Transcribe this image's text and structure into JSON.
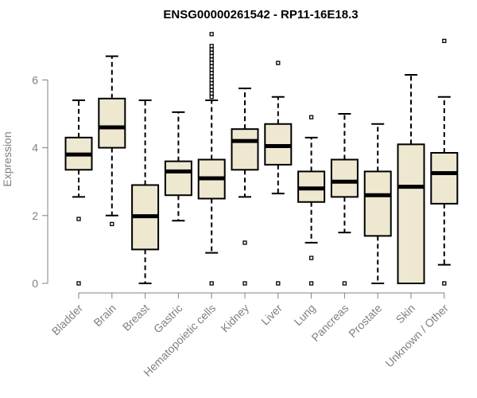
{
  "chart_data": {
    "type": "boxplot",
    "title": "ENSG00000261542 - RP11-16E18.3",
    "xlabel": "",
    "ylabel": "Expression",
    "ylim": [
      0,
      7.4
    ],
    "yticks": [
      0,
      2,
      4,
      6
    ],
    "box_fill": "#EEE8D0",
    "axis_color": "#808080",
    "categories": [
      "Bladder",
      "Brain",
      "Breast",
      "Gastric",
      "Hematopoietic cells",
      "Kidney",
      "Liver",
      "Lung",
      "Pancreas",
      "Prostate",
      "Skin",
      "Unknown / Other"
    ],
    "boxes": [
      {
        "whisker_low": 2.55,
        "q1": 3.35,
        "median": 3.8,
        "q3": 4.3,
        "whisker_high": 5.4,
        "outliers": [
          1.9,
          0
        ]
      },
      {
        "whisker_low": 2.0,
        "q1": 4.0,
        "median": 4.6,
        "q3": 5.45,
        "whisker_high": 6.7,
        "outliers": [
          1.75
        ]
      },
      {
        "whisker_low": 0,
        "q1": 1.0,
        "median": 1.98,
        "q3": 2.9,
        "whisker_high": 5.4,
        "outliers": []
      },
      {
        "whisker_low": 1.85,
        "q1": 2.6,
        "median": 3.3,
        "q3": 3.6,
        "whisker_high": 5.05,
        "outliers": []
      },
      {
        "whisker_low": 0.9,
        "q1": 2.5,
        "median": 3.1,
        "q3": 3.65,
        "whisker_high": 5.4,
        "outliers": [
          0,
          5.5,
          5.6,
          5.7,
          5.8,
          5.9,
          6.0,
          6.1,
          6.2,
          6.3,
          6.4,
          6.5,
          6.6,
          6.7,
          6.8,
          6.9,
          7.0,
          7.35
        ]
      },
      {
        "whisker_low": 2.55,
        "q1": 3.35,
        "median": 4.2,
        "q3": 4.55,
        "whisker_high": 5.75,
        "outliers": [
          1.2,
          0
        ]
      },
      {
        "whisker_low": 2.65,
        "q1": 3.5,
        "median": 4.05,
        "q3": 4.7,
        "whisker_high": 5.5,
        "outliers": [
          6.5,
          0
        ]
      },
      {
        "whisker_low": 1.2,
        "q1": 2.4,
        "median": 2.8,
        "q3": 3.3,
        "whisker_high": 4.3,
        "outliers": [
          4.9,
          0.75,
          0
        ]
      },
      {
        "whisker_low": 1.5,
        "q1": 2.55,
        "median": 3.0,
        "q3": 3.65,
        "whisker_high": 5.0,
        "outliers": [
          0
        ]
      },
      {
        "whisker_low": 0,
        "q1": 1.4,
        "median": 2.6,
        "q3": 3.3,
        "whisker_high": 4.7,
        "outliers": []
      },
      {
        "whisker_low": 0,
        "q1": 0,
        "median": 2.85,
        "q3": 4.1,
        "whisker_high": 6.15,
        "outliers": []
      },
      {
        "whisker_low": 0.55,
        "q1": 2.35,
        "median": 3.25,
        "q3": 3.85,
        "whisker_high": 5.5,
        "outliers": [
          7.15,
          0
        ]
      }
    ]
  }
}
